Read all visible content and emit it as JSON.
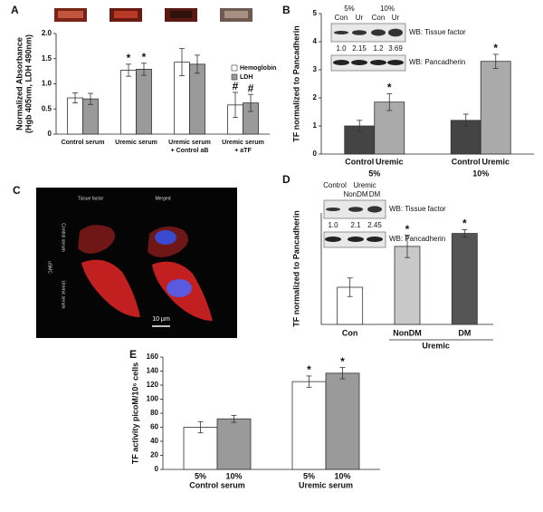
{
  "chart_data": [
    {
      "type": "bar",
      "panel": "A",
      "ylabel": [
        "Normalized Absorbance",
        "(Hgb 405nm, LDH 490nm)"
      ],
      "categories": [
        [
          "Control serum"
        ],
        [
          "Uremic serum"
        ],
        [
          "Uremic serum",
          "+ Control aB"
        ],
        [
          "Uremic serum",
          "+ aTF"
        ]
      ],
      "series": [
        {
          "name": "Hemoglobin",
          "color": "#ffffff",
          "values": [
            0.72,
            1.27,
            1.43,
            0.58
          ],
          "errors": [
            0.1,
            0.12,
            0.27,
            0.25
          ],
          "markers": [
            null,
            "*",
            null,
            "#"
          ]
        },
        {
          "name": "LDH",
          "color": "#9a9a9a",
          "values": [
            0.7,
            1.29,
            1.39,
            0.62
          ],
          "errors": [
            0.11,
            0.12,
            0.18,
            0.17
          ],
          "markers": [
            null,
            "*",
            null,
            "#"
          ]
        }
      ],
      "ylim": [
        0,
        2
      ],
      "yticks": [
        0,
        {
          "value": 0.5,
          "label": "0.5"
        },
        {
          "value": 1,
          "label": "1.0"
        },
        {
          "value": 1.5,
          "label": "1.5"
        },
        {
          "value": 2,
          "label": "2.0"
        }
      ],
      "legend": "upper right"
    },
    {
      "type": "bar",
      "panel": "B",
      "ylabel": "TF normalized to Pancadherin",
      "categories": [
        "Control",
        "Uremic",
        "Control",
        "Uremic"
      ],
      "group_labels": [
        "5%",
        "10%"
      ],
      "values": [
        1.0,
        1.85,
        1.2,
        3.3
      ],
      "errors": [
        0.2,
        0.3,
        0.22,
        0.25
      ],
      "markers": [
        null,
        "*",
        null,
        "*"
      ],
      "colors": [
        "#444444",
        "#aaaaaa",
        "#444444",
        "#aaaaaa"
      ],
      "ylim": [
        0,
        5
      ],
      "yticks": [
        0,
        1,
        2,
        3,
        4,
        5
      ],
      "blot": {
        "top": [
          "5%",
          "10%"
        ],
        "lanes": [
          "Con",
          "Ur",
          "Con",
          "Ur"
        ],
        "ratios": [
          {
            "value": 1,
            "label": "1.0"
          },
          2.15,
          1.2,
          3.69
        ],
        "rows": [
          "WB: Tissue factor",
          "WB: Pancadherin"
        ]
      }
    },
    {
      "type": "bar",
      "panel": "D",
      "ylabel": "TF normalized to Pancadherin",
      "categories": [
        "Con",
        "NonDM",
        "DM"
      ],
      "group_labels": [
        "Uremic"
      ],
      "values": [
        1.0,
        2.1,
        2.45
      ],
      "errors": [
        0.25,
        0.3,
        0.1
      ],
      "markers": [
        null,
        "*",
        "*"
      ],
      "colors": [
        "#ffffff",
        "#c8c8c8",
        "#555555"
      ],
      "ylim": [
        0,
        3
      ],
      "blot": {
        "top": [
          "Control",
          "Uremic"
        ],
        "lanes": [
          "NonDM",
          "DM"
        ],
        "ratios": [
          {
            "value": 1,
            "label": "1.0"
          },
          2.1,
          2.45
        ],
        "rows": [
          "WB: Tissue factor",
          "WB: Pancadherin"
        ]
      }
    },
    {
      "type": "bar",
      "panel": "E",
      "ylabel": "TF activity picoM/10⁶ cells",
      "categories": [
        "5%",
        "10%",
        "5%",
        "10%"
      ],
      "group_labels": [
        "Control serum",
        "Uremic serum"
      ],
      "values": [
        60,
        72,
        125,
        137
      ],
      "errors": [
        8,
        5,
        8,
        8
      ],
      "markers": [
        null,
        null,
        "*",
        "*"
      ],
      "colors": [
        "#ffffff",
        "#9a9a9a",
        "#ffffff",
        "#9a9a9a"
      ],
      "ylim": [
        0,
        160
      ],
      "yticks": [
        0,
        20,
        40,
        60,
        80,
        100,
        120,
        140,
        160
      ]
    }
  ],
  "panel_c": {
    "label": "C",
    "column_titles": [
      "Tissue factor",
      "Merged"
    ],
    "row_labels": [
      "Control serum",
      "Uremic serum"
    ],
    "side_label": "uSMC",
    "scale": "10 µm"
  }
}
